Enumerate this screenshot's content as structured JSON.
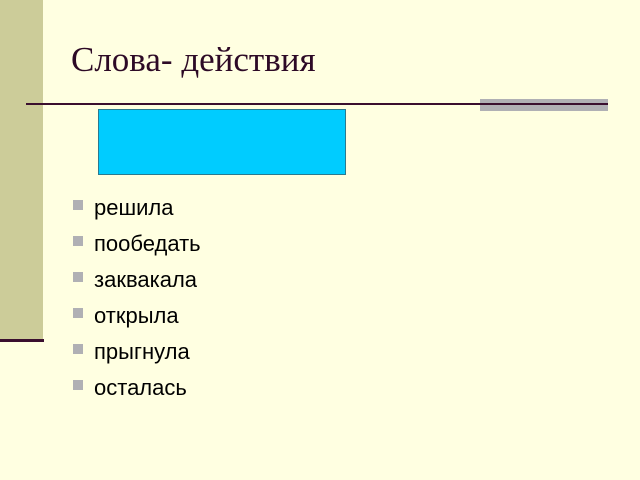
{
  "slide": {
    "title": "Слова- действия",
    "bullets": [
      "решила",
      "пообедать",
      "заквакала",
      "открыла",
      "прыгнула",
      "осталась"
    ],
    "colors": {
      "background": "#ffffe1",
      "sidebar": "#cccc99",
      "title": "#2d0a26",
      "box": "#00ccff",
      "bullet": "#b0b0b4"
    },
    "bullet_icon": "square-bullet-icon"
  }
}
